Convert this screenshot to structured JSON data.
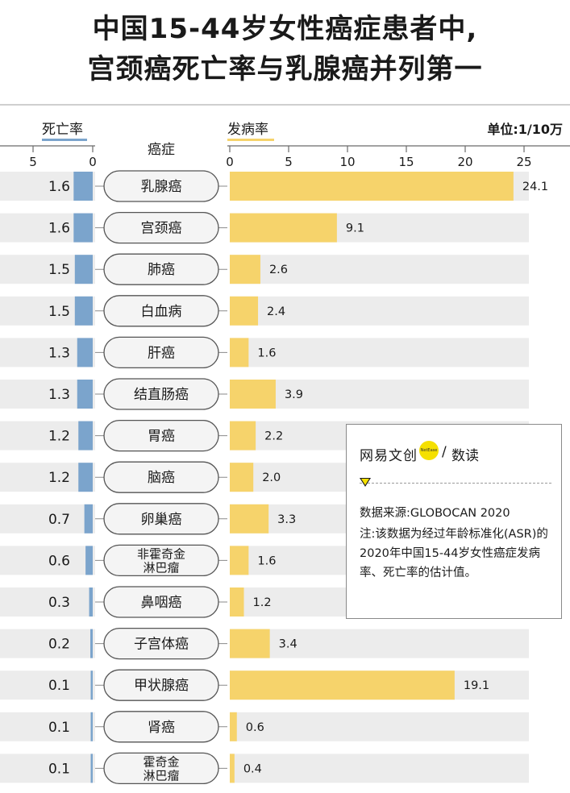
{
  "title": [
    "中国15-44岁女性癌症患者中,",
    "宫颈癌死亡率与乳腺癌并列第一"
  ],
  "colors": {
    "death": "#7ba4cc",
    "incidence": "#f6d36b",
    "pill_bg": "#f4f4f4",
    "pill_border": "#555555",
    "row_bg": "#e6e6e6",
    "accent_yellow": "#f5e000"
  },
  "note": {
    "logo": "网易文创",
    "logo_badge": "NetEase",
    "logo_slash": "/",
    "logo_sub": "数读",
    "source": "数据来源:GLOBOCAN 2020",
    "text": "注:该数据为经过年龄标准化(ASR)的2020年中国15-44岁女性癌症发病率、死亡率的估计值。"
  },
  "chart_data": {
    "type": "bar",
    "unit": "单位:1/10万",
    "category_header": "癌症",
    "categories": [
      "乳腺癌",
      "宫颈癌",
      "肺癌",
      "白血病",
      "肝癌",
      "结直肠癌",
      "胃癌",
      "脑癌",
      "卵巢癌",
      "非霍奇金淋巴瘤",
      "鼻咽癌",
      "子宫体癌",
      "甲状腺癌",
      "肾癌",
      "霍奇金淋巴瘤"
    ],
    "category_lines": [
      [
        "乳腺癌"
      ],
      [
        "宫颈癌"
      ],
      [
        "肺癌"
      ],
      [
        "白血病"
      ],
      [
        "肝癌"
      ],
      [
        "结直肠癌"
      ],
      [
        "胃癌"
      ],
      [
        "脑癌"
      ],
      [
        "卵巢癌"
      ],
      [
        "非霍奇金",
        "淋巴瘤"
      ],
      [
        "鼻咽癌"
      ],
      [
        "子宫体癌"
      ],
      [
        "甲状腺癌"
      ],
      [
        "肾癌"
      ],
      [
        "霍奇金",
        "淋巴瘤"
      ]
    ],
    "series": [
      {
        "name": "死亡率",
        "values": [
          1.6,
          1.6,
          1.5,
          1.5,
          1.3,
          1.3,
          1.2,
          1.2,
          0.7,
          0.6,
          0.3,
          0.2,
          0.1,
          0.1,
          0.1
        ],
        "labels": [
          "1.6",
          "1.6",
          "1.5",
          "1.5",
          "1.3",
          "1.3",
          "1.2",
          "1.2",
          "0.7",
          "0.6",
          "0.3",
          "0.2",
          "0.1",
          "0.1",
          "0.1"
        ]
      },
      {
        "name": "发病率",
        "values": [
          24.1,
          9.1,
          2.6,
          2.4,
          1.6,
          3.9,
          2.2,
          2.0,
          3.3,
          1.6,
          1.2,
          3.4,
          19.1,
          0.6,
          0.4
        ],
        "labels": [
          "24.1",
          "9.1",
          "2.6",
          "2.4",
          "1.6",
          "3.9",
          "2.2",
          "2.0",
          "3.3",
          "1.6",
          "1.2",
          "3.4",
          "19.1",
          "0.6",
          "0.4"
        ]
      }
    ],
    "death_axis": {
      "ticks": [
        5,
        0
      ],
      "tick_labels": [
        "5",
        "0"
      ],
      "range": [
        6,
        0
      ]
    },
    "incidence_axis": {
      "ticks": [
        0,
        5,
        10,
        15,
        20,
        25
      ],
      "tick_labels": [
        "0",
        "5",
        "10",
        "15",
        "20",
        "25"
      ],
      "range": [
        0,
        25
      ]
    }
  }
}
